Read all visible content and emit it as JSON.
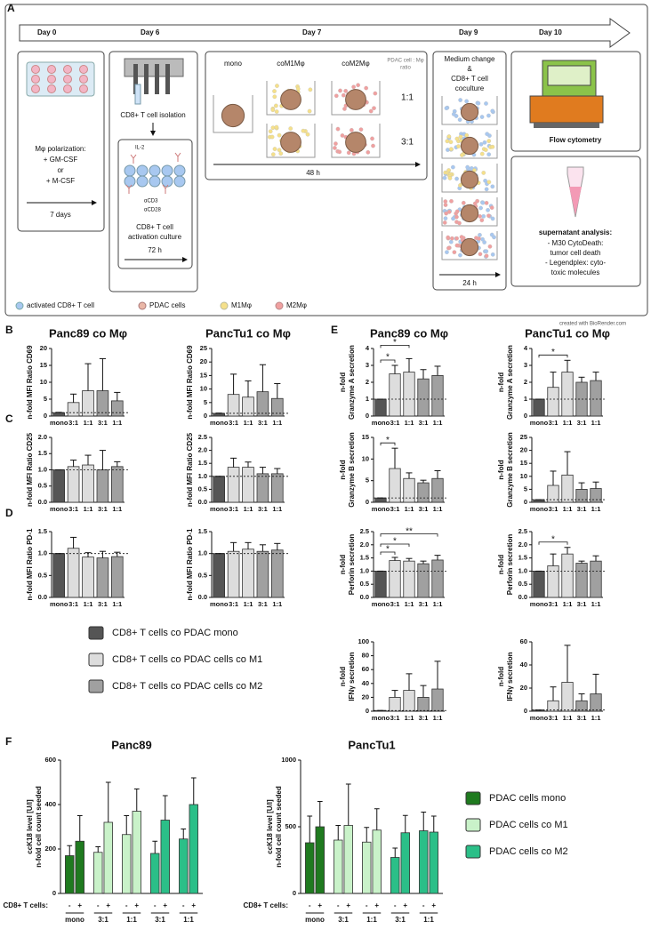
{
  "panel_a": {
    "label": "A",
    "timeline": [
      "Day 0",
      "Day 6",
      "Day 7",
      "Day 9",
      "Day 10"
    ],
    "polarization": [
      "Mφ polarization:",
      "+ GM-CSF",
      "or",
      "+ M-CSF"
    ],
    "polarization_time": "7 days",
    "isolation": "CD8+ T cell isolation",
    "activation": {
      "reagents": [
        "IL-2",
        "αCD3",
        "αCD28"
      ],
      "label": [
        "CD8+ T cell",
        "activation culture"
      ],
      "time": "72 h"
    },
    "coculture": {
      "columns": [
        "mono",
        "coM1Mφ",
        "coM2Mφ"
      ],
      "ratio_header": [
        "PDAC cell : Mφ",
        "ratio"
      ],
      "ratios": [
        "1:1",
        "3:1"
      ],
      "time": "48 h"
    },
    "medium": {
      "label": [
        "Medium change",
        "&",
        "CD8+ T cell",
        "coculture"
      ],
      "time": "24 h"
    },
    "flow": "Flow cytometry",
    "supernatant": {
      "title": "supernatant analysis:",
      "lines": [
        "- M30 CytoDeath:",
        "tumor cell death",
        "- Legendplex: cyto-",
        "toxic molecules"
      ]
    },
    "legend": [
      "activated CD8+ T cell",
      "PDAC cells",
      "M1Mφ",
      "M2Mφ"
    ],
    "credit": "created with BioRender.com"
  },
  "legend_bd": [
    {
      "name": "CD8+ T cells  co PDAC mono",
      "color": "#555555"
    },
    {
      "name": "CD8+ T cells co PDAC cells co M1",
      "color": "#dddddd"
    },
    {
      "name": "CD8+ T cells co PDAC cells co M2",
      "color": "#a0a0a0"
    }
  ],
  "legend_f": [
    {
      "name": "PDAC cells mono",
      "color": "#1f7a1f"
    },
    {
      "name": "PDAC cells co M1",
      "color": "#c9f2c9"
    },
    {
      "name": "PDAC cells co M2",
      "color": "#2bbf88"
    }
  ],
  "chart_data": [
    {
      "type": "bar",
      "panel": "B",
      "title": "Panc89 co Mφ",
      "ylabel": [
        "n-fold MFI Ratio CD69"
      ],
      "categories": [
        "mono",
        "3:1",
        "1:1",
        "3:1",
        "1:1"
      ],
      "values": [
        1,
        4,
        7.5,
        7.5,
        4.5
      ],
      "errors": [
        0.1,
        2.5,
        8,
        9.5,
        2.5
      ],
      "colors": [
        "#555555",
        "#dddddd",
        "#dddddd",
        "#a0a0a0",
        "#a0a0a0"
      ],
      "reference_line": 1,
      "ylim": [
        0,
        20
      ],
      "yticks": [
        0,
        5,
        10,
        15,
        20
      ]
    },
    {
      "type": "bar",
      "title": "PancTu1 co Mφ",
      "ylabel": [
        "n-fold MFI Ratio CD69"
      ],
      "categories": [
        "mono",
        "3:1",
        "1:1",
        "3:1",
        "1:1"
      ],
      "values": [
        1,
        8,
        7,
        9,
        6.5
      ],
      "errors": [
        0.1,
        7.5,
        6,
        10,
        5.5
      ],
      "colors": [
        "#555555",
        "#dddddd",
        "#dddddd",
        "#a0a0a0",
        "#a0a0a0"
      ],
      "reference_line": 1,
      "ylim": [
        0,
        25
      ],
      "yticks": [
        0,
        5,
        10,
        15,
        20,
        25
      ]
    },
    {
      "type": "bar",
      "panel": "C",
      "ylabel": [
        "n-fold MFI Ratio CD25"
      ],
      "categories": [
        "mono",
        "3:1",
        "1:1",
        "3:1",
        "1:1"
      ],
      "values": [
        1,
        1.1,
        1.15,
        1,
        1.1
      ],
      "errors": [
        0,
        0.2,
        0.3,
        0.6,
        0.15
      ],
      "colors": [
        "#555555",
        "#dddddd",
        "#dddddd",
        "#a0a0a0",
        "#a0a0a0"
      ],
      "reference_line": 1,
      "ylim": [
        0,
        2
      ],
      "yticks": [
        {
          "value": 0,
          "label": "0.0"
        },
        0.5,
        {
          "value": 1,
          "label": "1.0"
        },
        1.5,
        {
          "value": 2,
          "label": "2.0"
        }
      ]
    },
    {
      "type": "bar",
      "ylabel": [
        "n-fold MFI Ratio CD25"
      ],
      "categories": [
        "mono",
        "3:1",
        "1:1",
        "3:1",
        "1:1"
      ],
      "values": [
        1,
        1.35,
        1.35,
        1.1,
        1.1
      ],
      "errors": [
        0,
        0.35,
        0.2,
        0.25,
        0.2
      ],
      "colors": [
        "#555555",
        "#dddddd",
        "#dddddd",
        "#a0a0a0",
        "#a0a0a0"
      ],
      "reference_line": 1,
      "ylim": [
        0,
        2.5
      ],
      "yticks": [
        {
          "value": 0,
          "label": "0.0"
        },
        0.5,
        {
          "value": 1,
          "label": "1.0"
        },
        1.5,
        {
          "value": 2,
          "label": "2.0"
        },
        2.5
      ]
    },
    {
      "type": "bar",
      "panel": "D",
      "ylabel": [
        "n-fold MFI Ratio PD-1"
      ],
      "categories": [
        "mono",
        "3:1",
        "1:1",
        "3:1",
        "1:1"
      ],
      "values": [
        1,
        1.12,
        0.92,
        0.9,
        0.93
      ],
      "errors": [
        0,
        0.25,
        0.1,
        0.15,
        0.1
      ],
      "colors": [
        "#555555",
        "#dddddd",
        "#dddddd",
        "#a0a0a0",
        "#a0a0a0"
      ],
      "reference_line": 1,
      "ylim": [
        0,
        1.5
      ],
      "yticks": [
        {
          "value": 0,
          "label": "0.0"
        },
        0.5,
        {
          "value": 1,
          "label": "1.0"
        },
        1.5
      ]
    },
    {
      "type": "bar",
      "ylabel": [
        "n-fold MFI Ratio PD-1"
      ],
      "categories": [
        "mono",
        "3:1",
        "1:1",
        "3:1",
        "1:1"
      ],
      "values": [
        1,
        1.05,
        1.1,
        1.05,
        1.08
      ],
      "errors": [
        0,
        0.2,
        0.15,
        0.15,
        0.15
      ],
      "colors": [
        "#555555",
        "#dddddd",
        "#dddddd",
        "#a0a0a0",
        "#a0a0a0"
      ],
      "reference_line": 1,
      "ylim": [
        0,
        1.5
      ],
      "yticks": [
        {
          "value": 0,
          "label": "0.0"
        },
        0.5,
        {
          "value": 1,
          "label": "1.0"
        },
        1.5
      ]
    },
    {
      "type": "bar",
      "panel": "E",
      "title": "Panc89 co Mφ",
      "ylabel": [
        "n-fold",
        "Granzyme A secretion"
      ],
      "categories": [
        "mono",
        "3:1",
        "1:1",
        "3:1",
        "1:1"
      ],
      "values": [
        1,
        2.5,
        2.6,
        2.2,
        2.4
      ],
      "errors": [
        0,
        0.5,
        0.8,
        0.55,
        0.55
      ],
      "colors": [
        "#555555",
        "#dddddd",
        "#dddddd",
        "#a0a0a0",
        "#a0a0a0"
      ],
      "reference_line": 1,
      "ylim": [
        0,
        4
      ],
      "yticks": [
        0,
        1,
        2,
        3,
        4
      ],
      "significance": [
        {
          "from": 0,
          "to": 1,
          "label": "*"
        },
        {
          "from": 0,
          "to": 2,
          "label": "*"
        }
      ]
    },
    {
      "type": "bar",
      "title": "PancTu1 co Mφ",
      "ylabel": [
        "n-fold",
        "Granzyme A secretion"
      ],
      "categories": [
        "mono",
        "3:1",
        "1:1",
        "3:1",
        "1:1"
      ],
      "values": [
        1,
        1.7,
        2.6,
        2,
        2.1
      ],
      "errors": [
        0,
        0.9,
        0.7,
        0.3,
        0.5
      ],
      "colors": [
        "#555555",
        "#dddddd",
        "#dddddd",
        "#a0a0a0",
        "#a0a0a0"
      ],
      "reference_line": 1,
      "ylim": [
        0,
        4
      ],
      "yticks": [
        0,
        1,
        2,
        3,
        4
      ],
      "significance": [
        {
          "from": 0,
          "to": 2,
          "label": "*"
        }
      ]
    },
    {
      "type": "bar",
      "ylabel": [
        "n-fold",
        "Granzyme B secretion"
      ],
      "categories": [
        "mono",
        "3:1",
        "1:1",
        "3:1",
        "1:1"
      ],
      "values": [
        1,
        7.8,
        5.5,
        4.5,
        5.5
      ],
      "errors": [
        0,
        4.7,
        1.3,
        0.6,
        1.8
      ],
      "colors": [
        "#555555",
        "#dddddd",
        "#dddddd",
        "#a0a0a0",
        "#a0a0a0"
      ],
      "reference_line": 1,
      "ylim": [
        0,
        15
      ],
      "yticks": [
        0,
        5,
        10,
        15
      ],
      "significance": [
        {
          "from": 0,
          "to": 1,
          "label": "*"
        }
      ]
    },
    {
      "type": "bar",
      "ylabel": [
        "n-fold",
        "Granzyme B secretion"
      ],
      "categories": [
        "mono",
        "3:1",
        "1:1",
        "3:1",
        "1:1"
      ],
      "values": [
        1,
        6.5,
        10.5,
        5,
        5.3
      ],
      "errors": [
        0,
        5.5,
        9,
        2.5,
        2.5
      ],
      "colors": [
        "#555555",
        "#dddddd",
        "#dddddd",
        "#a0a0a0",
        "#a0a0a0"
      ],
      "reference_line": 1,
      "ylim": [
        0,
        25
      ],
      "yticks": [
        0,
        5,
        10,
        15,
        20,
        25
      ]
    },
    {
      "type": "bar",
      "ylabel": [
        "n-fold",
        "Perforin secretion"
      ],
      "categories": [
        "mono",
        "3:1",
        "1:1",
        "3:1",
        "1:1"
      ],
      "values": [
        1,
        1.4,
        1.38,
        1.28,
        1.42
      ],
      "errors": [
        0,
        0.12,
        0.1,
        0.1,
        0.18
      ],
      "colors": [
        "#555555",
        "#dddddd",
        "#dddddd",
        "#a0a0a0",
        "#a0a0a0"
      ],
      "reference_line": 1,
      "ylim": [
        0,
        2.5
      ],
      "yticks": [
        {
          "value": 0,
          "label": "0.0"
        },
        0.5,
        {
          "value": 1,
          "label": "1.0"
        },
        1.5,
        {
          "value": 2,
          "label": "2.0"
        },
        2.5
      ],
      "significance": [
        {
          "from": 0,
          "to": 1,
          "label": "*"
        },
        {
          "from": 0,
          "to": 2,
          "label": "*"
        },
        {
          "from": 0,
          "to": 4,
          "label": "**"
        }
      ]
    },
    {
      "type": "bar",
      "ylabel": [
        "n-fold",
        "Perforin secretion"
      ],
      "categories": [
        "mono",
        "3:1",
        "1:1",
        "3:1",
        "1:1"
      ],
      "values": [
        1,
        1.2,
        1.65,
        1.3,
        1.38
      ],
      "errors": [
        0,
        0.45,
        0.25,
        0.08,
        0.2
      ],
      "colors": [
        "#555555",
        "#dddddd",
        "#dddddd",
        "#a0a0a0",
        "#a0a0a0"
      ],
      "reference_line": 1,
      "ylim": [
        0,
        2.5
      ],
      "yticks": [
        {
          "value": 0,
          "label": "0.0"
        },
        0.5,
        {
          "value": 1,
          "label": "1.0"
        },
        1.5,
        {
          "value": 2,
          "label": "2.0"
        },
        2.5
      ],
      "significance": [
        {
          "from": 0,
          "to": 2,
          "label": "*"
        }
      ]
    },
    {
      "type": "bar",
      "ylabel": [
        "n-fold",
        "IFNγ secretion"
      ],
      "categories": [
        "mono",
        "3:1",
        "1:1",
        "3:1",
        "1:1"
      ],
      "values": [
        1,
        20,
        30,
        20,
        32
      ],
      "errors": [
        0,
        10,
        24,
        17,
        40
      ],
      "colors": [
        "#555555",
        "#dddddd",
        "#dddddd",
        "#a0a0a0",
        "#a0a0a0"
      ],
      "reference_line": 1,
      "ylim": [
        0,
        100
      ],
      "yticks": [
        0,
        20,
        40,
        60,
        80,
        100
      ]
    },
    {
      "type": "bar",
      "ylabel": [
        "n-fold",
        "IFNγ secretion"
      ],
      "categories": [
        "mono",
        "3:1",
        "1:1",
        "3:1",
        "1:1"
      ],
      "values": [
        1,
        9,
        25,
        9,
        15
      ],
      "errors": [
        0,
        12,
        32,
        6,
        17
      ],
      "colors": [
        "#555555",
        "#dddddd",
        "#dddddd",
        "#a0a0a0",
        "#a0a0a0"
      ],
      "reference_line": 1,
      "ylim": [
        0,
        60
      ],
      "yticks": [
        0,
        20,
        40,
        60
      ]
    },
    {
      "type": "grouped_bar",
      "panel": "F",
      "title": "Panc89",
      "ylabel": [
        "ccK18 level [U/l]",
        "n-fold cell count seeded"
      ],
      "categories": [
        "mono",
        "3:1",
        "1:1",
        "3:1",
        "1:1"
      ],
      "subcategory_label": "CD8+ T cells:",
      "subcategories": [
        "-",
        "+"
      ],
      "values": [
        [
          170,
          235
        ],
        [
          185,
          320
        ],
        [
          265,
          370
        ],
        [
          180,
          330
        ],
        [
          245,
          400
        ]
      ],
      "errors": [
        [
          45,
          115
        ],
        [
          25,
          180
        ],
        [
          85,
          100
        ],
        [
          55,
          110
        ],
        [
          45,
          120
        ]
      ],
      "colors": [
        "#1f7a1f",
        "#c9f2c9",
        "#c9f2c9",
        "#2bbf88",
        "#2bbf88"
      ],
      "ylim": [
        0,
        600
      ],
      "yticks": [
        0,
        200,
        400,
        600
      ]
    },
    {
      "type": "grouped_bar",
      "title": "PancTu1",
      "ylabel": [
        "ccK18 level [U/l]",
        "n-fold cell count seeded"
      ],
      "categories": [
        "mono",
        "3:1",
        "1:1",
        "3:1",
        "1:1"
      ],
      "subcategory_label": "CD8+ T cells:",
      "subcategories": [
        "-",
        "+"
      ],
      "values": [
        [
          380,
          500
        ],
        [
          400,
          510
        ],
        [
          385,
          475
        ],
        [
          270,
          455
        ],
        [
          470,
          460
        ]
      ],
      "errors": [
        [
          200,
          190
        ],
        [
          110,
          310
        ],
        [
          110,
          160
        ],
        [
          70,
          130
        ],
        [
          140,
          120
        ]
      ],
      "colors": [
        "#1f7a1f",
        "#c9f2c9",
        "#c9f2c9",
        "#2bbf88",
        "#2bbf88"
      ],
      "ylim": [
        0,
        1000
      ],
      "yticks": [
        0,
        500,
        1000
      ]
    }
  ]
}
